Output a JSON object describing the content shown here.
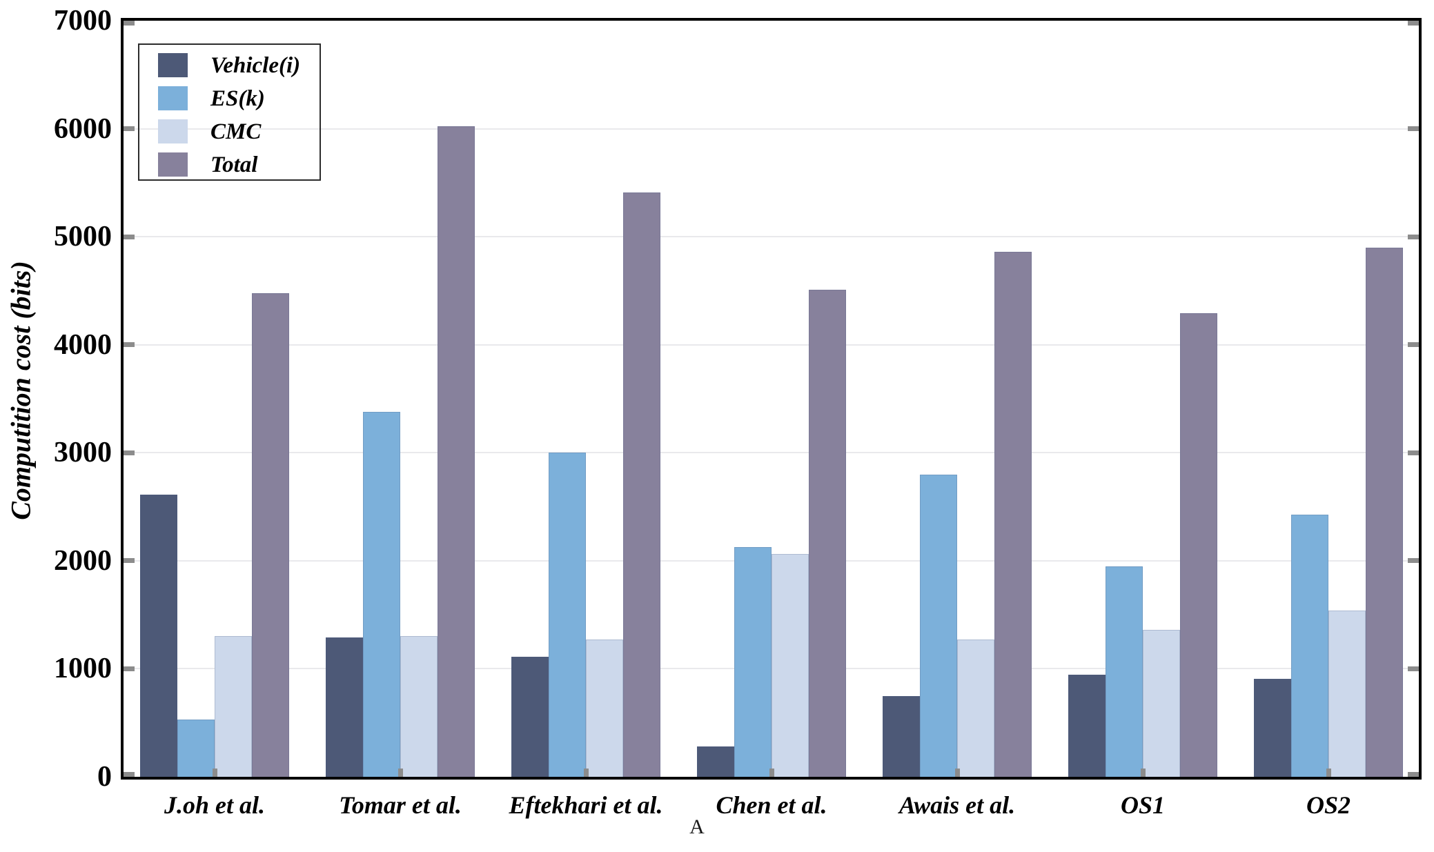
{
  "chart_data": {
    "type": "bar",
    "title": "",
    "ylabel": "Computition cost (bits)",
    "xlabel": "",
    "caption": "A",
    "ylim": [
      0,
      7000
    ],
    "ytick_step": 1000,
    "yticks": [
      0,
      1000,
      2000,
      3000,
      4000,
      5000,
      6000,
      7000
    ],
    "grid": true,
    "legend_position": "upper-left",
    "categories": [
      "J.oh et al.",
      "Tomar et al.",
      "Eftekhari et al.",
      "Chen et al.",
      "Awais et al.",
      "OS1",
      "OS2"
    ],
    "series": [
      {
        "name": "Vehicle(i)",
        "color": "#4d5977",
        "values": [
          2610,
          1290,
          1110,
          280,
          750,
          945,
          910
        ]
      },
      {
        "name": "ES(k)",
        "color": "#7cb0da",
        "values": [
          530,
          3380,
          3000,
          2130,
          2800,
          1950,
          2430
        ]
      },
      {
        "name": "CMC",
        "color": "#ccd8eb",
        "values": [
          1300,
          1300,
          1270,
          2060,
          1270,
          1360,
          1540
        ]
      },
      {
        "name": "Total",
        "color": "#87819c",
        "values": [
          4480,
          6020,
          5410,
          4510,
          4860,
          4290,
          4900
        ]
      }
    ],
    "colors": {
      "gridline": "#e9e9ec",
      "tick": "#8c8c8c",
      "axis_border": "#000000",
      "background": "#ffffff"
    }
  }
}
